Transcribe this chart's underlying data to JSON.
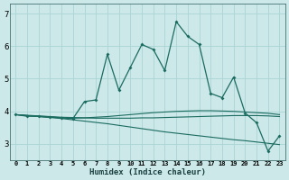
{
  "xlabel": "Humidex (Indice chaleur)",
  "ylabel": "",
  "background_color": "#cce8e8",
  "grid_color": "#aad4d4",
  "line_color": "#1a6b60",
  "xlim": [
    -0.5,
    23.5
  ],
  "ylim": [
    2.5,
    7.3
  ],
  "yticks": [
    3,
    4,
    5,
    6,
    7
  ],
  "xticks": [
    0,
    1,
    2,
    3,
    4,
    5,
    6,
    7,
    8,
    9,
    10,
    11,
    12,
    13,
    14,
    15,
    16,
    17,
    18,
    19,
    20,
    21,
    22,
    23
  ],
  "xtick_labels": [
    "0",
    "1",
    "2",
    "3",
    "4",
    "5",
    "6",
    "7",
    "8",
    "9",
    "10",
    "11",
    "12",
    "13",
    "14",
    "15",
    "16",
    "17",
    "18",
    "19",
    "20",
    "21",
    "22",
    "23"
  ],
  "main_line_x": [
    0,
    1,
    2,
    3,
    4,
    5,
    6,
    7,
    8,
    9,
    10,
    11,
    12,
    13,
    14,
    15,
    16,
    17,
    18,
    19,
    20,
    21,
    22,
    23
  ],
  "main_line_y": [
    3.9,
    3.85,
    3.85,
    3.83,
    3.8,
    3.78,
    4.3,
    4.35,
    5.75,
    4.65,
    5.35,
    6.05,
    5.9,
    5.25,
    6.75,
    6.3,
    6.05,
    4.55,
    4.42,
    5.05,
    3.95,
    3.65,
    2.78,
    3.25
  ],
  "line2_y": [
    3.9,
    3.87,
    3.84,
    3.82,
    3.8,
    3.79,
    3.8,
    3.82,
    3.84,
    3.87,
    3.9,
    3.93,
    3.96,
    3.98,
    4.0,
    4.01,
    4.02,
    4.02,
    4.01,
    4.0,
    3.98,
    3.96,
    3.94,
    3.9
  ],
  "line3_y": [
    3.9,
    3.87,
    3.84,
    3.81,
    3.78,
    3.74,
    3.7,
    3.66,
    3.62,
    3.57,
    3.52,
    3.47,
    3.42,
    3.37,
    3.33,
    3.29,
    3.25,
    3.21,
    3.17,
    3.13,
    3.1,
    3.06,
    3.02,
    2.98
  ],
  "line4_y": [
    3.9,
    3.88,
    3.86,
    3.84,
    3.82,
    3.81,
    3.8,
    3.79,
    3.79,
    3.79,
    3.79,
    3.8,
    3.8,
    3.81,
    3.82,
    3.83,
    3.84,
    3.85,
    3.86,
    3.87,
    3.87,
    3.87,
    3.86,
    3.84
  ]
}
